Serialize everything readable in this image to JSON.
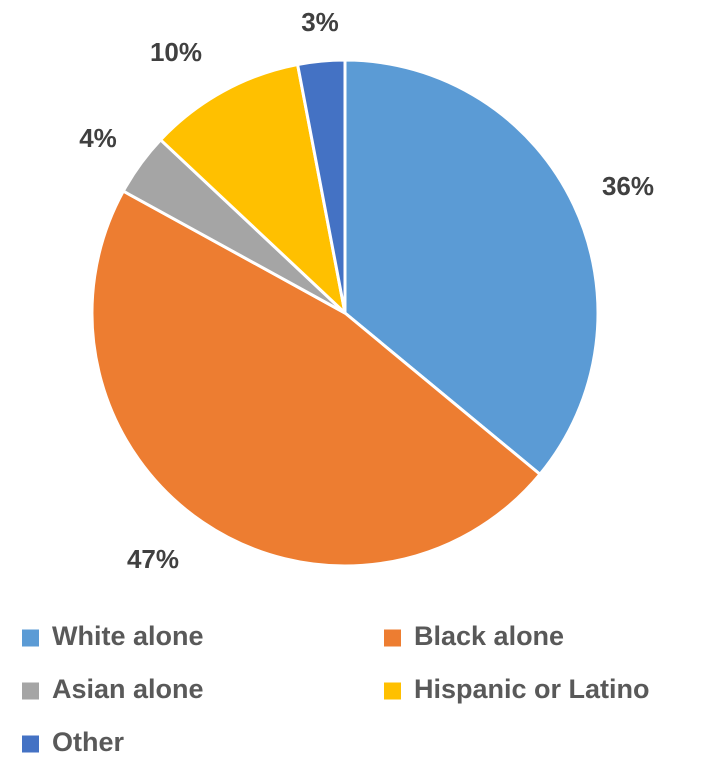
{
  "chart_data": {
    "type": "pie",
    "title": "",
    "start_angle_deg": 0,
    "direction": "clockwise",
    "slices": [
      {
        "label": "White alone",
        "value": 36,
        "display": "36%",
        "color": "#5b9bd5"
      },
      {
        "label": "Black alone",
        "value": 47,
        "display": "47%",
        "color": "#ed7d31"
      },
      {
        "label": "Asian alone",
        "value": 4,
        "display": "4%",
        "color": "#a5a5a5"
      },
      {
        "label": "Hispanic or Latino",
        "value": 10,
        "display": "10%",
        "color": "#ffc000"
      },
      {
        "label": "Other",
        "value": 3,
        "display": "3%",
        "color": "#4472c4"
      }
    ],
    "legend": {
      "position": "bottom",
      "items": [
        "White alone",
        "Black alone",
        "Asian alone",
        "Hispanic or Latino",
        "Other"
      ]
    }
  }
}
